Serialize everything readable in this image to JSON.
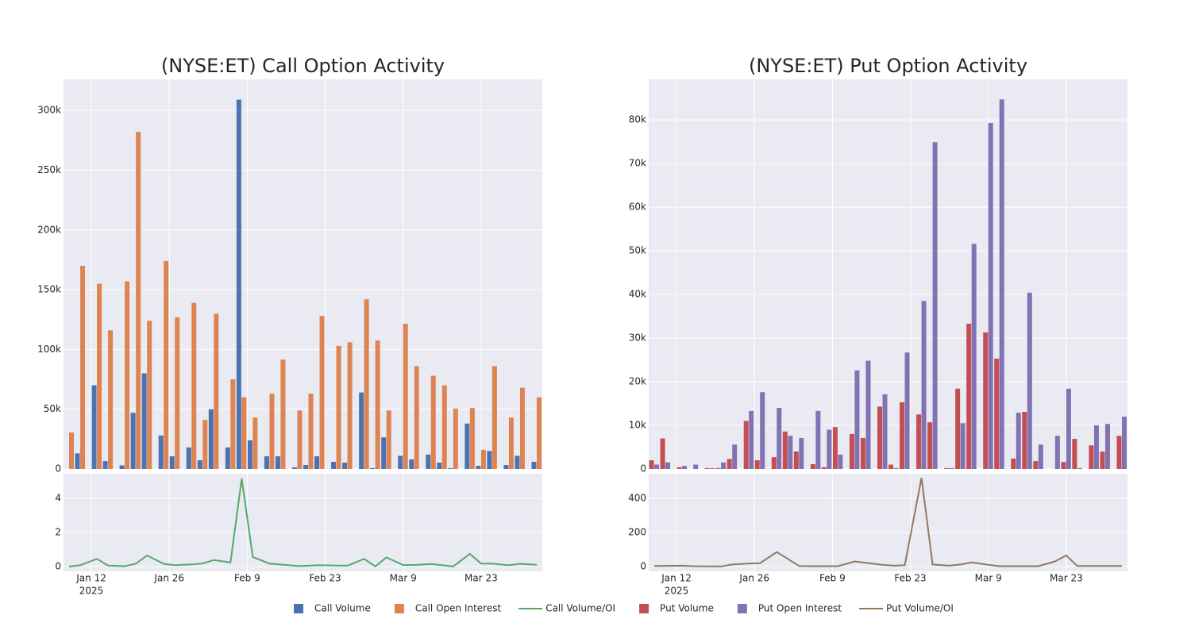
{
  "chart_data": [
    {
      "type": "bar",
      "title": "(NYSE:ET) Call Option Activity",
      "x": [
        "2025-01-08",
        "2025-01-10",
        "2025-01-13",
        "2025-01-15",
        "2025-01-18",
        "2025-01-20",
        "2025-01-22",
        "2025-01-25",
        "2025-01-27",
        "2025-01-30",
        "2025-02-01",
        "2025-02-03",
        "2025-02-06",
        "2025-02-08",
        "2025-02-10",
        "2025-02-13",
        "2025-02-15",
        "2025-02-18",
        "2025-02-20",
        "2025-02-22",
        "2025-02-25",
        "2025-02-27",
        "2025-03-02",
        "2025-03-04",
        "2025-03-06",
        "2025-03-09",
        "2025-03-11",
        "2025-03-14",
        "2025-03-16",
        "2025-03-18",
        "2025-03-21",
        "2025-03-23",
        "2025-03-25",
        "2025-03-28",
        "2025-03-30",
        "2025-04-02"
      ],
      "xlim": [
        "2025-01-07",
        "2025-04-03"
      ],
      "xticks": [
        {
          "value": "2025-01-12",
          "label": "Jan 12",
          "sublabel": "2025"
        },
        {
          "value": "2025-01-26",
          "label": "Jan 26"
        },
        {
          "value": "2025-02-09",
          "label": "Feb 9"
        },
        {
          "value": "2025-02-23",
          "label": "Feb 23"
        },
        {
          "value": "2025-03-09",
          "label": "Mar 9"
        },
        {
          "value": "2025-03-23",
          "label": "Mar 23"
        }
      ],
      "ylim": [
        0,
        326000
      ],
      "yticks": [
        0,
        {
          "value": 50000,
          "label": "50k"
        },
        {
          "value": 100000,
          "label": "100k"
        },
        {
          "value": 150000,
          "label": "150k"
        },
        {
          "value": 200000,
          "label": "200k"
        },
        {
          "value": 250000,
          "label": "250k"
        },
        {
          "value": 300000,
          "label": "300k"
        }
      ],
      "y2lim": [
        -0.28,
        5.44
      ],
      "y2ticks": [
        0,
        2,
        4
      ],
      "grid": true,
      "series": [
        {
          "name": "Call Volume",
          "type": "bar",
          "color": "#4c72b0",
          "values": [
            0,
            13000,
            70000,
            6600,
            3000,
            47000,
            80000,
            28000,
            10600,
            18000,
            7300,
            50000,
            18000,
            309000,
            24000,
            10600,
            10600,
            1300,
            3300,
            10600,
            6000,
            5300,
            64000,
            700,
            26500,
            11000,
            8000,
            12000,
            5300,
            700,
            38000,
            2700,
            15000,
            3300,
            11000,
            6000
          ]
        },
        {
          "name": "Call Open Interest",
          "type": "bar",
          "color": "#dd8452",
          "values": [
            30500,
            170000,
            155000,
            116000,
            157000,
            282000,
            124000,
            174000,
            127000,
            139000,
            41000,
            130000,
            75000,
            60000,
            43000,
            63000,
            91500,
            49000,
            63000,
            128000,
            103000,
            106000,
            142000,
            107500,
            49000,
            121500,
            86000,
            78000,
            70000,
            50500,
            51000,
            16000,
            86000,
            43000,
            68000,
            60000
          ]
        },
        {
          "name": "Call Volume/OI",
          "type": "line",
          "axis": "y2",
          "color": "#55a868",
          "values": [
            0,
            0.08,
            0.45,
            0.06,
            0.02,
            0.17,
            0.65,
            0.16,
            0.08,
            0.13,
            0.18,
            0.38,
            0.24,
            5.15,
            0.56,
            0.17,
            0.12,
            0.03,
            0.05,
            0.08,
            0.06,
            0.05,
            0.45,
            0.01,
            0.54,
            0.09,
            0.09,
            0.15,
            0.08,
            0.01,
            0.75,
            0.17,
            0.17,
            0.08,
            0.16,
            0.1
          ]
        }
      ]
    },
    {
      "type": "bar",
      "title": "(NYSE:ET) Put Option Activity",
      "x": [
        "2025-01-08",
        "2025-01-10",
        "2025-01-13",
        "2025-01-15",
        "2025-01-18",
        "2025-01-20",
        "2025-01-22",
        "2025-01-25",
        "2025-01-27",
        "2025-01-30",
        "2025-02-01",
        "2025-02-03",
        "2025-02-06",
        "2025-02-08",
        "2025-02-10",
        "2025-02-13",
        "2025-02-15",
        "2025-02-18",
        "2025-02-20",
        "2025-02-22",
        "2025-02-25",
        "2025-02-27",
        "2025-03-02",
        "2025-03-04",
        "2025-03-06",
        "2025-03-09",
        "2025-03-11",
        "2025-03-14",
        "2025-03-16",
        "2025-03-18",
        "2025-03-21",
        "2025-03-23",
        "2025-03-25",
        "2025-03-28",
        "2025-03-30",
        "2025-04-02"
      ],
      "xlim": [
        "2025-01-07",
        "2025-04-03"
      ],
      "xticks": [
        {
          "value": "2025-01-12",
          "label": "Jan 12",
          "sublabel": "2025"
        },
        {
          "value": "2025-01-26",
          "label": "Jan 26"
        },
        {
          "value": "2025-02-09",
          "label": "Feb 9"
        },
        {
          "value": "2025-02-23",
          "label": "Feb 23"
        },
        {
          "value": "2025-03-09",
          "label": "Mar 9"
        },
        {
          "value": "2025-03-23",
          "label": "Mar 23"
        }
      ],
      "ylim": [
        0,
        89300
      ],
      "yticks": [
        0,
        {
          "value": 10000,
          "label": "10k"
        },
        {
          "value": 20000,
          "label": "20k"
        },
        {
          "value": 30000,
          "label": "30k"
        },
        {
          "value": 40000,
          "label": "40k"
        },
        {
          "value": 50000,
          "label": "50k"
        },
        {
          "value": 60000,
          "label": "60k"
        },
        {
          "value": 70000,
          "label": "70k"
        },
        {
          "value": 80000,
          "label": "80k"
        }
      ],
      "y2lim": [
        -28,
        544
      ],
      "y2ticks": [
        0,
        200,
        400
      ],
      "grid": true,
      "series": [
        {
          "name": "Put Volume",
          "type": "bar",
          "color": "#c44e52",
          "values": [
            2000,
            7000,
            400,
            0,
            200,
            200,
            2300,
            11000,
            2000,
            2700,
            8600,
            4000,
            1100,
            400,
            9600,
            8000,
            7100,
            14300,
            1000,
            15300,
            12500,
            10700,
            200,
            18400,
            33300,
            31300,
            25300,
            2400,
            13100,
            1800,
            0,
            1600,
            6900,
            5400,
            4000,
            7600
          ]
        },
        {
          "name": "Put Open Interest",
          "type": "bar",
          "color": "#8172b3",
          "values": [
            1000,
            1500,
            700,
            1000,
            200,
            1500,
            5600,
            13300,
            17600,
            14000,
            7600,
            7100,
            13300,
            9000,
            3300,
            22600,
            24800,
            17100,
            200,
            26700,
            38500,
            74900,
            200,
            10500,
            51600,
            79300,
            84700,
            12900,
            40400,
            5600,
            7600,
            18400,
            200,
            10000,
            10300,
            12000
          ]
        },
        {
          "name": "Put Volume/OI",
          "type": "line",
          "axis": "y2",
          "color": "#937860",
          "values": [
            3,
            4,
            5,
            2,
            1,
            1,
            12,
            18,
            20,
            85,
            45,
            3,
            2,
            2,
            2,
            30,
            22,
            10,
            5,
            8,
            520,
            12,
            5,
            12,
            25,
            10,
            2,
            2,
            2,
            2,
            30,
            65,
            3,
            3,
            3,
            3
          ]
        }
      ]
    }
  ]
}
